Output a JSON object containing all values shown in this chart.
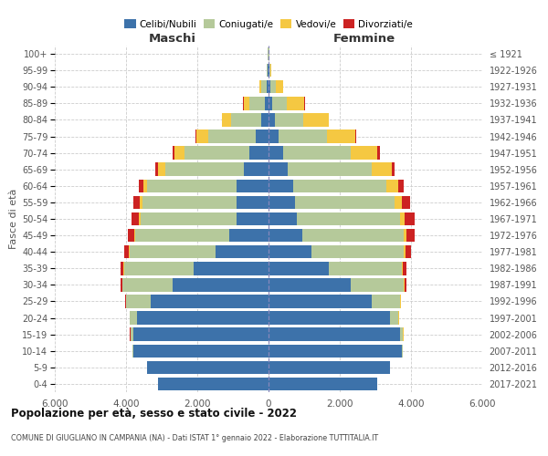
{
  "age_groups": [
    "0-4",
    "5-9",
    "10-14",
    "15-19",
    "20-24",
    "25-29",
    "30-34",
    "35-39",
    "40-44",
    "45-49",
    "50-54",
    "55-59",
    "60-64",
    "65-69",
    "70-74",
    "75-79",
    "80-84",
    "85-89",
    "90-94",
    "95-99",
    "100+"
  ],
  "birth_years": [
    "2017-2021",
    "2012-2016",
    "2007-2011",
    "2002-2006",
    "1997-2001",
    "1992-1996",
    "1987-1991",
    "1982-1986",
    "1977-1981",
    "1972-1976",
    "1967-1971",
    "1962-1966",
    "1957-1961",
    "1952-1956",
    "1947-1951",
    "1942-1946",
    "1937-1941",
    "1932-1936",
    "1927-1931",
    "1922-1926",
    "≤ 1921"
  ],
  "male": {
    "celibi": [
      3100,
      3400,
      3800,
      3800,
      3700,
      3300,
      2700,
      2100,
      1500,
      1100,
      900,
      900,
      900,
      700,
      550,
      350,
      200,
      100,
      50,
      20,
      10
    ],
    "coniugati": [
      5,
      10,
      20,
      80,
      200,
      700,
      1400,
      1950,
      2400,
      2650,
      2700,
      2650,
      2500,
      2200,
      1800,
      1350,
      850,
      450,
      150,
      30,
      10
    ],
    "vedovi": [
      1,
      1,
      2,
      2,
      5,
      5,
      10,
      15,
      20,
      30,
      40,
      60,
      120,
      200,
      300,
      320,
      250,
      150,
      50,
      10,
      2
    ],
    "divorziati": [
      1,
      1,
      2,
      3,
      5,
      15,
      40,
      80,
      130,
      180,
      200,
      180,
      120,
      80,
      50,
      30,
      20,
      10,
      5,
      2,
      1
    ]
  },
  "female": {
    "nubili": [
      3050,
      3400,
      3750,
      3700,
      3400,
      2900,
      2300,
      1700,
      1200,
      950,
      800,
      750,
      700,
      550,
      400,
      280,
      180,
      100,
      60,
      20,
      10
    ],
    "coniugate": [
      5,
      10,
      20,
      80,
      250,
      800,
      1500,
      2050,
      2600,
      2850,
      2900,
      2800,
      2600,
      2350,
      1900,
      1350,
      800,
      400,
      150,
      30,
      10
    ],
    "vedove": [
      1,
      1,
      2,
      3,
      5,
      10,
      20,
      30,
      50,
      80,
      130,
      200,
      350,
      550,
      750,
      800,
      700,
      500,
      200,
      30,
      5
    ],
    "divorziate": [
      1,
      1,
      2,
      4,
      8,
      20,
      50,
      100,
      160,
      230,
      260,
      220,
      150,
      100,
      70,
      40,
      25,
      15,
      5,
      2,
      1
    ]
  },
  "colors": {
    "celibi": "#3d72aa",
    "coniugati": "#b5c99a",
    "vedovi": "#f5c842",
    "divorziati": "#cc2222"
  },
  "xlim": 6000,
  "title": "Popolazione per età, sesso e stato civile - 2022",
  "subtitle": "COMUNE DI GIUGLIANO IN CAMPANIA (NA) - Dati ISTAT 1° gennaio 2022 - Elaborazione TUTTITALIA.IT",
  "xlabel_left": "Maschi",
  "xlabel_right": "Femmine",
  "ylabel_left": "Fasce di età",
  "xtick_positions": [
    -6000,
    -4000,
    -2000,
    0,
    2000,
    4000,
    6000
  ],
  "xtick_labels": [
    "6.000",
    "4.000",
    "2.000",
    "0",
    "2.000",
    "4.000",
    "6.000"
  ]
}
